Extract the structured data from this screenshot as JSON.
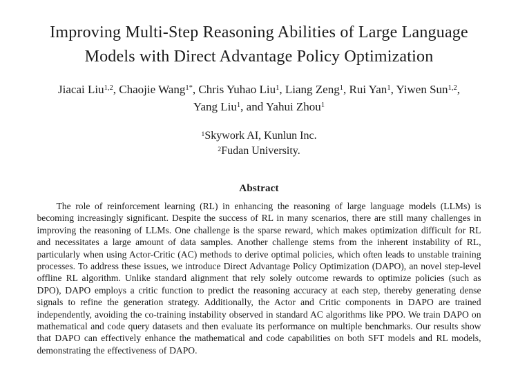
{
  "title": {
    "full": "Improving Multi-Step Reasoning Abilities of Large Language Models with Direct Advantage Policy Optimization",
    "lines": [
      "Improving Multi-Step Reasoning Abilities of Large Language",
      "Models with Direct Advantage Policy Optimization"
    ]
  },
  "authors": {
    "lines": [
      [
        {
          "pre": "",
          "name": "Jiacai Liu",
          "sup": "1,2",
          "post": ", "
        },
        {
          "pre": "",
          "name": "Chaojie Wang",
          "sup": "1*",
          "post": ", "
        },
        {
          "pre": "",
          "name": "Chris Yuhao Liu",
          "sup": "1",
          "post": ", "
        },
        {
          "pre": "",
          "name": "Liang Zeng",
          "sup": "1",
          "post": ", "
        },
        {
          "pre": "",
          "name": "Rui Yan",
          "sup": "1",
          "post": ", "
        },
        {
          "pre": "",
          "name": "Yiwen Sun",
          "sup": "1,2",
          "post": ","
        }
      ],
      [
        {
          "pre": "",
          "name": "Yang Liu",
          "sup": "1",
          "post": ", "
        },
        {
          "pre": "and ",
          "name": "Yahui Zhou",
          "sup": "1",
          "post": ""
        }
      ]
    ]
  },
  "affiliations": [
    {
      "sup": "1",
      "text": "Skywork AI, Kunlun Inc."
    },
    {
      "sup": "2",
      "text": "Fudan University."
    }
  ],
  "abstract": {
    "heading": "Abstract",
    "body": "The role of reinforcement learning (RL) in enhancing the reasoning of large language models (LLMs) is becoming increasingly significant. Despite the success of RL in many scenarios, there are still many challenges in improving the reasoning of LLMs. One challenge is the sparse reward, which makes optimization difficult for RL and necessitates a large amount of data samples. Another challenge stems from the inherent instability of RL, particularly when using Actor-Critic (AC) methods to derive optimal policies, which often leads to unstable training processes. To address these issues, we introduce Direct Advantage Policy Optimization (DAPO), an novel step-level offline RL algorithm. Unlike standard alignment that rely solely outcome rewards to optimize policies (such as DPO), DAPO employs a critic function to predict the reasoning accuracy at each step, thereby generating dense signals to refine the generation strategy. Additionally, the Actor and Critic components in DAPO are trained independently, avoiding the co-training instability observed in standard AC algorithms like PPO. We train DAPO on mathematical and code query datasets and then evaluate its performance on multiple benchmarks. Our results show that DAPO can effectively enhance the mathematical and code capabilities on both SFT models and RL models, demonstrating the effectiveness of DAPO."
  },
  "colors": {
    "background": "#ffffff",
    "text": "#1a1a1a"
  }
}
